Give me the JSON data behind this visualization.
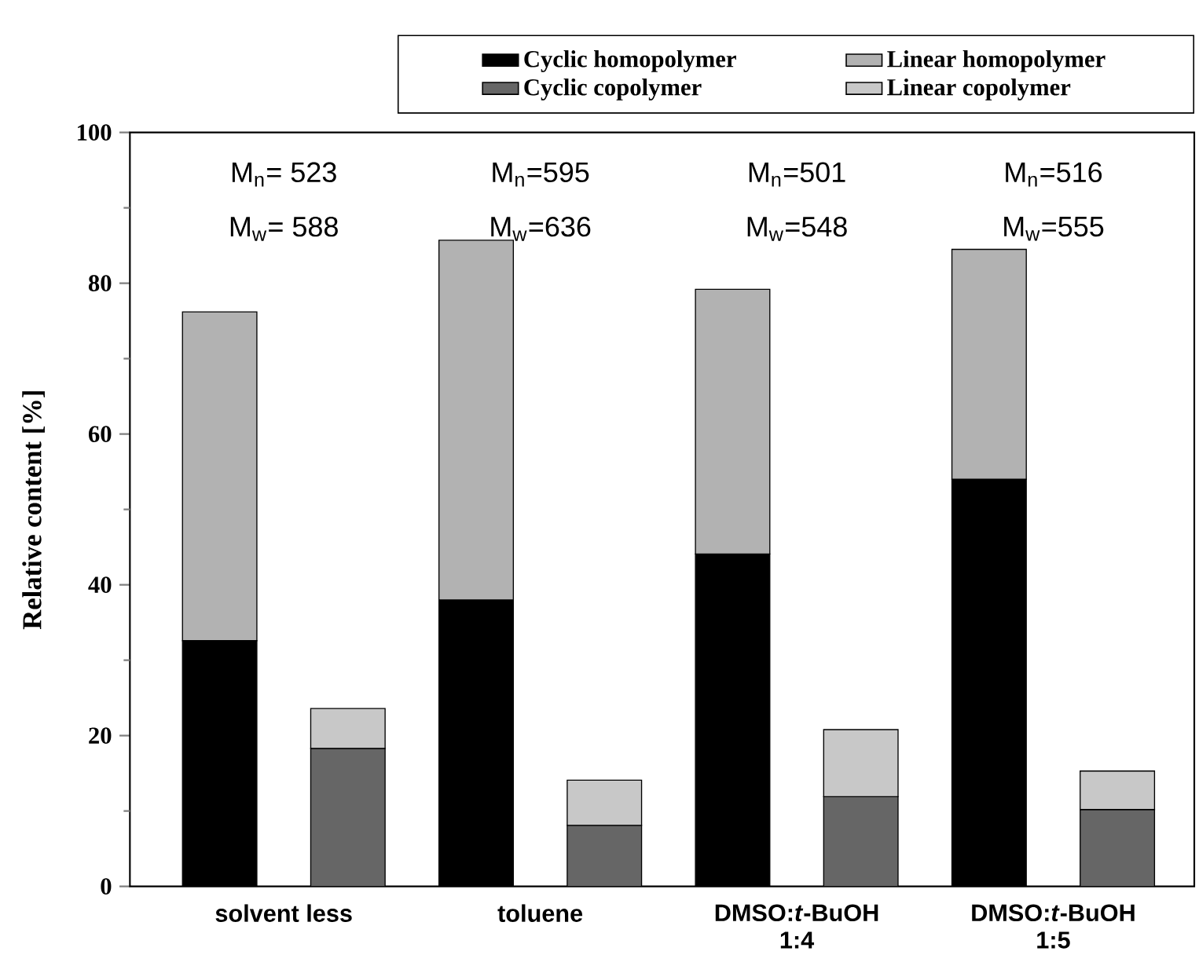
{
  "chart_data": {
    "type": "bar",
    "stacked": true,
    "ylabel": "Relative content [%]",
    "categories": [
      "solvent less",
      null,
      "toluene",
      null,
      "DMSO:*t*-BuOH\n1:4",
      null,
      "DMSO:*t*-BuOH\n1:5",
      null
    ],
    "series": [
      {
        "name": "Cyclic homopolymer",
        "color": "#000000",
        "values": [
          32.6,
          null,
          38.0,
          null,
          44.1,
          null,
          54.0,
          null
        ]
      },
      {
        "name": "Linear homopolymer",
        "color": "#b2b2b2",
        "values": [
          43.6,
          null,
          47.7,
          null,
          35.1,
          null,
          30.5,
          null
        ]
      },
      {
        "name": "Cyclic copolymer",
        "color": "#666666",
        "values": [
          null,
          18.3,
          null,
          8.1,
          null,
          11.9,
          null,
          10.2
        ]
      },
      {
        "name": "Linear copolymer",
        "color": "#c8c8c8",
        "values": [
          null,
          5.3,
          null,
          6.0,
          null,
          8.9,
          null,
          5.1
        ]
      }
    ],
    "ylim": [
      0,
      100
    ],
    "yticks": [
      0,
      {
        "value": 10,
        "label": null
      },
      20,
      {
        "value": 30,
        "label": null
      },
      40,
      {
        "value": 50,
        "label": null
      },
      60,
      {
        "value": 70,
        "label": null
      },
      80,
      {
        "value": 90,
        "label": null
      },
      100
    ],
    "legend": "top right",
    "annotations": [
      "M$_{n}$= 523",
      "M$_{w}$= 588",
      "M$_{n}$=595",
      "M$_{w}$=636",
      "M$_{n}$=501",
      "M$_{w}$=548",
      "M$_{n}$=516",
      "M$_{w}$=555"
    ]
  }
}
